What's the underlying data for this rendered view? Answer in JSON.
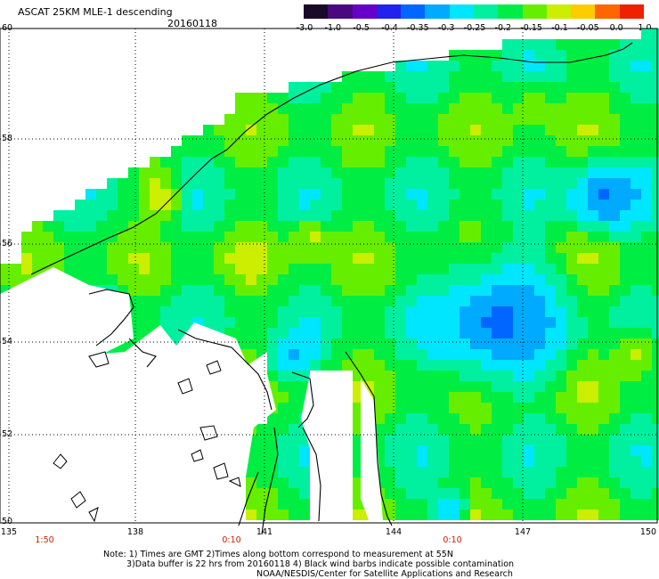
{
  "title": "ASCAT 25KM MLE-1 descending",
  "date": "20160118",
  "colorbar": {
    "labels": [
      "-3.0",
      "-1.0",
      "-0.5",
      "-0.4",
      "-0.35",
      "-0.3",
      "-0.25",
      "-0.2",
      "-0.15",
      "-0.1",
      "-0.05",
      "0.0",
      "1.0"
    ],
    "colors": [
      "#1a0a2a",
      "#4a0880",
      "#6600c8",
      "#2222ee",
      "#0066ff",
      "#00aaff",
      "#00e6ff",
      "#00f0a0",
      "#00ee44",
      "#66ee00",
      "#ccee00",
      "#ffcc00",
      "#ff6600",
      "#ee2200"
    ]
  },
  "axes": {
    "lat_labels": [
      "60",
      "58",
      "56",
      "54",
      "52",
      "50"
    ],
    "lon_labels": [
      "135",
      "138",
      "141",
      "144",
      "147",
      "150"
    ]
  },
  "times": [
    "1:50",
    "0:10",
    "0:10"
  ],
  "notes": {
    "line1": "Note: 1) Times are GMT 2)Times along bottom correspond to measurement at 55N",
    "line2": "3)Data buffer is 22 hrs from 20160118 4) Black wind barbs indicate possible contamination",
    "line3": "NOAA/NESDIS/Center for Satellite Applications and Research"
  }
}
